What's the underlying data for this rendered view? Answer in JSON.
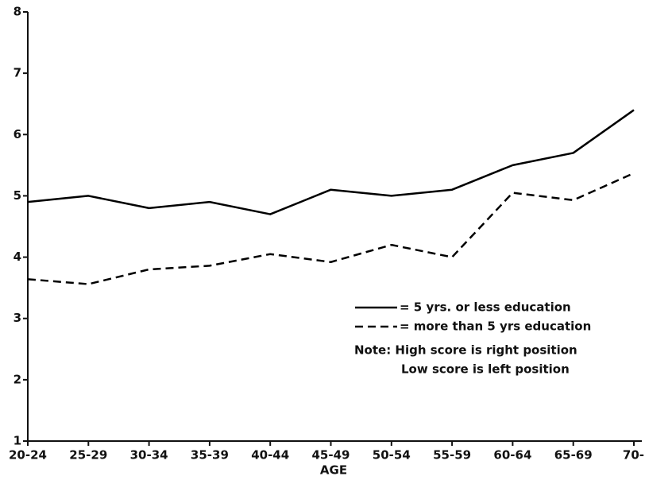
{
  "chart_data": {
    "type": "line",
    "x_label": "AGE",
    "categories": [
      "20-24",
      "25-29",
      "30-34",
      "35-39",
      "40-44",
      "45-49",
      "50-54",
      "55-59",
      "60-64",
      "65-69",
      "70-"
    ],
    "series": [
      {
        "name": "= 5 yrs. or less education",
        "color": "#000000",
        "dashed": false,
        "values": [
          4.9,
          5.0,
          4.8,
          4.9,
          4.7,
          5.1,
          5.0,
          5.1,
          5.5,
          5.7,
          6.4
        ]
      },
      {
        "name": "= more than 5 yrs education",
        "color": "#000000",
        "dashed": true,
        "values": [
          3.64,
          3.56,
          3.8,
          3.86,
          4.05,
          3.92,
          4.2,
          4.0,
          5.05,
          4.93,
          5.37
        ]
      }
    ],
    "annotations": [
      "Note: High score is right position",
      "Low score is left position"
    ],
    "ylim": [
      1,
      8
    ],
    "yticks": [
      1,
      2,
      3,
      4,
      5,
      6,
      7,
      8
    ],
    "grid": false
  }
}
